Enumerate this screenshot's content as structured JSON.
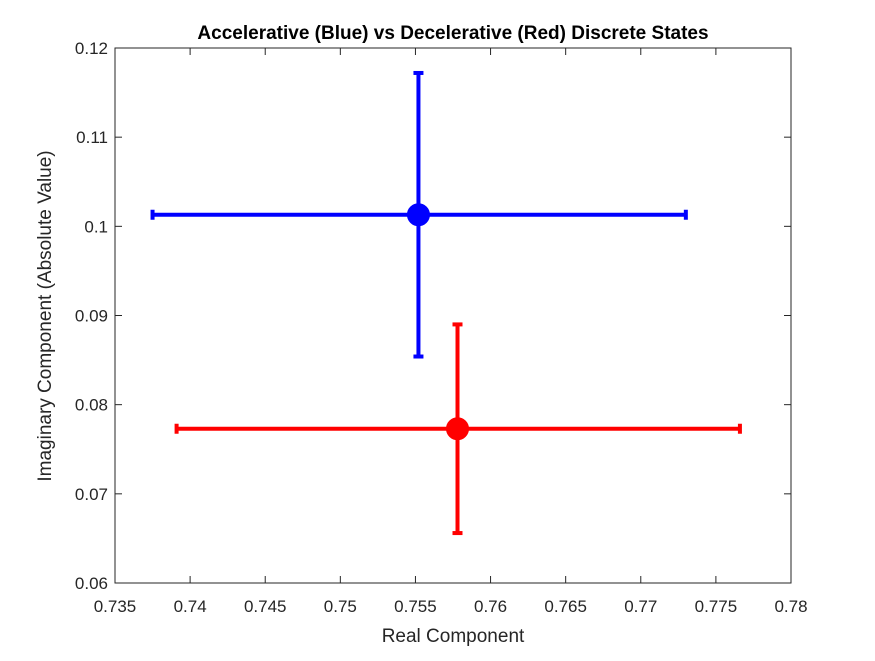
{
  "chart_data": {
    "type": "scatter",
    "title": "Accelerative (Blue) vs Decelerative (Red) Discrete States",
    "xlabel": "Real Component",
    "ylabel": "Imaginary Component (Absolute Value)",
    "xlim": [
      0.735,
      0.78
    ],
    "ylim": [
      0.06,
      0.12
    ],
    "xticks": [
      "0.735",
      "0.74",
      "0.745",
      "0.75",
      "0.755",
      "0.76",
      "0.765",
      "0.77",
      "0.775",
      "0.78"
    ],
    "yticks": [
      "0.06",
      "0.07",
      "0.08",
      "0.09",
      "0.1",
      "0.11",
      "0.12"
    ],
    "grid": false,
    "series": [
      {
        "color": "#0000ff",
        "x": 0.7552,
        "y": 0.1013,
        "x_err": [
          0.7375,
          0.773
        ],
        "y_err": [
          0.0854,
          0.1172
        ]
      },
      {
        "color": "#ff0000",
        "x": 0.7578,
        "y": 0.0773,
        "x_err": [
          0.7391,
          0.7766
        ],
        "y_err": [
          0.0656,
          0.089
        ]
      }
    ]
  }
}
